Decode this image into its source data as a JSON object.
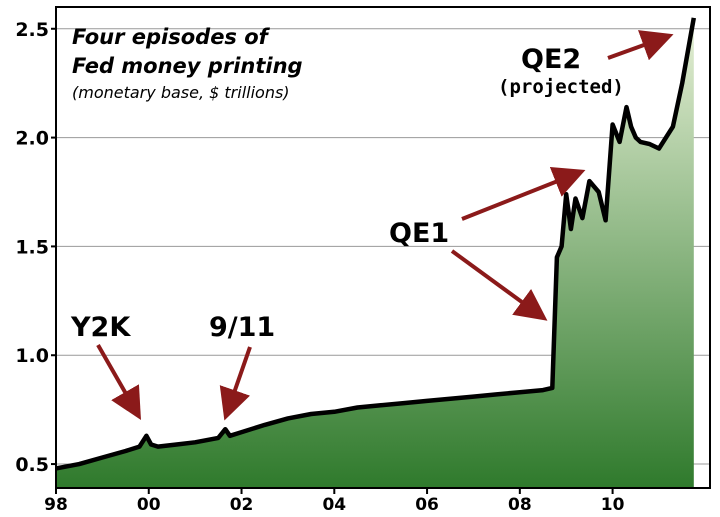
{
  "chart_data": {
    "type": "area",
    "title_lines": [
      "Four episodes of",
      "Fed money printing"
    ],
    "subtitle": "(monetary base, $ trillions)",
    "x_ticks": [
      {
        "label": "98",
        "value": 1998
      },
      {
        "label": "00",
        "value": 2000
      },
      {
        "label": "02",
        "value": 2002
      },
      {
        "label": "04",
        "value": 2004
      },
      {
        "label": "06",
        "value": 2006
      },
      {
        "label": "08",
        "value": 2008
      },
      {
        "label": "10",
        "value": 2010
      }
    ],
    "y_ticks": [
      {
        "label": "0.5",
        "value": 0.5
      },
      {
        "label": "1.0",
        "value": 1.0
      },
      {
        "label": "1.5",
        "value": 1.5
      },
      {
        "label": "2.0",
        "value": 2.0
      },
      {
        "label": "2.5",
        "value": 2.5
      }
    ],
    "xlim": [
      1998,
      2012.1
    ],
    "ylim": [
      0.39,
      2.6
    ],
    "grid": "horizontal",
    "series": [
      {
        "x": [
          1998.0,
          1998.5,
          1999.0,
          1999.5,
          1999.8,
          1999.95,
          2000.05,
          2000.2,
          2000.6,
          2001.0,
          2001.5,
          2001.65,
          2001.75,
          2001.9,
          2002.5,
          2003.0,
          2003.5,
          2004.0,
          2004.5,
          2005.0,
          2005.5,
          2006.0,
          2006.5,
          2007.0,
          2007.5,
          2008.0,
          2008.5,
          2008.7,
          2008.8,
          2008.9,
          2009.0,
          2009.1,
          2009.2,
          2009.35,
          2009.5,
          2009.7,
          2009.85,
          2010.0,
          2010.15,
          2010.3,
          2010.4,
          2010.5,
          2010.6,
          2010.8,
          2011.0,
          2011.3,
          2011.5,
          2011.75
        ],
        "y": [
          0.48,
          0.5,
          0.53,
          0.56,
          0.58,
          0.63,
          0.59,
          0.58,
          0.59,
          0.6,
          0.62,
          0.66,
          0.63,
          0.64,
          0.68,
          0.71,
          0.73,
          0.74,
          0.76,
          0.77,
          0.78,
          0.79,
          0.8,
          0.81,
          0.82,
          0.83,
          0.84,
          0.85,
          1.45,
          1.5,
          1.74,
          1.58,
          1.72,
          1.63,
          1.8,
          1.75,
          1.62,
          2.06,
          1.98,
          2.14,
          2.05,
          2.0,
          1.98,
          1.97,
          1.95,
          2.05,
          2.25,
          2.55
        ]
      }
    ],
    "annotations": [
      {
        "text": "Y2K",
        "target": [
          2000.0,
          0.6
        ]
      },
      {
        "text": "9/11",
        "target": [
          2001.7,
          0.64
        ]
      },
      {
        "text": "QE1",
        "targets": [
          [
            2009.6,
            1.79
          ],
          [
            2008.75,
            0.97
          ]
        ]
      },
      {
        "text": "QE2",
        "sub": "(projected)",
        "target": [
          2011.7,
          2.54
        ]
      }
    ],
    "colors": {
      "fill_top": "#e6f0d6",
      "fill_bottom": "#2f7a2c",
      "line": "#000000",
      "arrow": "#8b1a1a",
      "grid": "#999999"
    }
  }
}
